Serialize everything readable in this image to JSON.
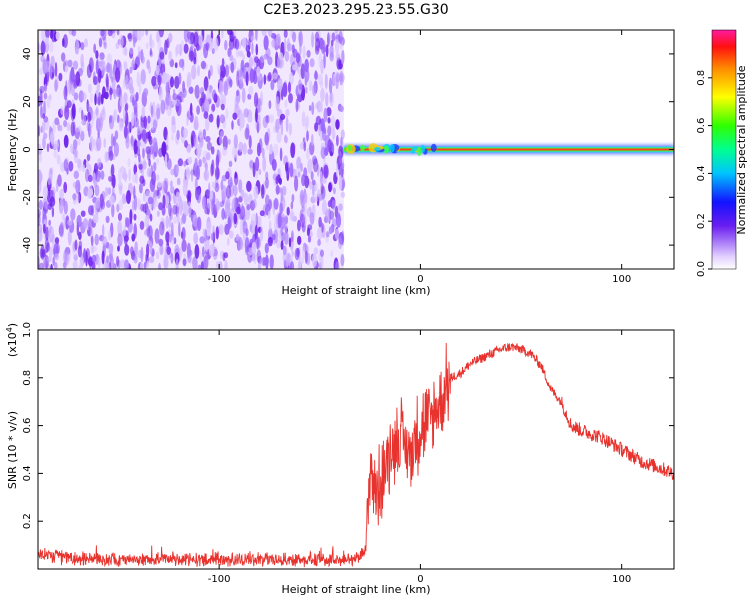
{
  "title": "C2E3.2023.295.23.55.G30",
  "chart_data": [
    {
      "type": "heatmap",
      "xlabel": "Height of straight line (km)",
      "ylabel": "Frequency (Hz)",
      "xlim": [
        -190,
        126
      ],
      "ylim": [
        -50,
        50
      ],
      "xticks": [
        -100,
        0,
        100
      ],
      "xtick_labels": [
        "-100",
        "0",
        "100"
      ],
      "yticks": [
        -40,
        -20,
        0,
        20,
        40
      ],
      "ytick_labels": [
        "-40",
        "-20",
        "0",
        "20",
        "40"
      ],
      "noise_region_x": [
        -190,
        -38
      ],
      "noise_level": 0.2,
      "signal_line": {
        "frequency": 0,
        "x_start": -38,
        "x_end": 126,
        "amplitude_core": 0.8,
        "amplitude_halo": 0.2
      },
      "colorbar": {
        "label": "Normalized spectral amplitude",
        "range": [
          0,
          1
        ],
        "ticks": [
          0.0,
          0.2,
          0.4,
          0.6,
          0.8
        ],
        "tick_labels": [
          "0.0",
          "0.2",
          "0.4",
          "0.6",
          "0.8"
        ]
      },
      "grid": false
    },
    {
      "type": "line",
      "xlabel": "Height of straight line (km)",
      "ylabel": "SNR (10 * v/v)",
      "yscale_label": "(x10",
      "yscale_exp": "4",
      "xlim": [
        -190,
        126
      ],
      "ylim": [
        0,
        1.0
      ],
      "xticks": [
        -100,
        0,
        100
      ],
      "xtick_labels": [
        "-100",
        "0",
        "100"
      ],
      "yticks": [
        0.2,
        0.4,
        0.6,
        0.8,
        1.0
      ],
      "ytick_labels": [
        "0.2",
        "0.4",
        "0.6",
        "0.8",
        "1.0"
      ],
      "series": [
        {
          "color": "#e8322d",
          "x": [
            -190,
            -180,
            -160,
            -140,
            -120,
            -100,
            -80,
            -60,
            -45,
            -35,
            -30,
            -27,
            -25,
            -22,
            -20,
            -15,
            -10,
            -5,
            0,
            5,
            10,
            15,
            20,
            25,
            30,
            35,
            40,
            45,
            50,
            55,
            60,
            65,
            70,
            75,
            80,
            90,
            100,
            110,
            120,
            126
          ],
          "y": [
            0.06,
            0.05,
            0.04,
            0.04,
            0.04,
            0.04,
            0.04,
            0.04,
            0.04,
            0.04,
            0.05,
            0.08,
            0.45,
            0.3,
            0.35,
            0.5,
            0.55,
            0.48,
            0.6,
            0.62,
            0.7,
            0.8,
            0.82,
            0.86,
            0.88,
            0.9,
            0.92,
            0.93,
            0.92,
            0.9,
            0.85,
            0.75,
            0.7,
            0.6,
            0.58,
            0.55,
            0.5,
            0.45,
            0.42,
            0.4
          ]
        }
      ],
      "grid": false
    }
  ],
  "colors": {
    "line": "#e8322d",
    "axis": "#000000",
    "noise": "#7a2ff0"
  }
}
